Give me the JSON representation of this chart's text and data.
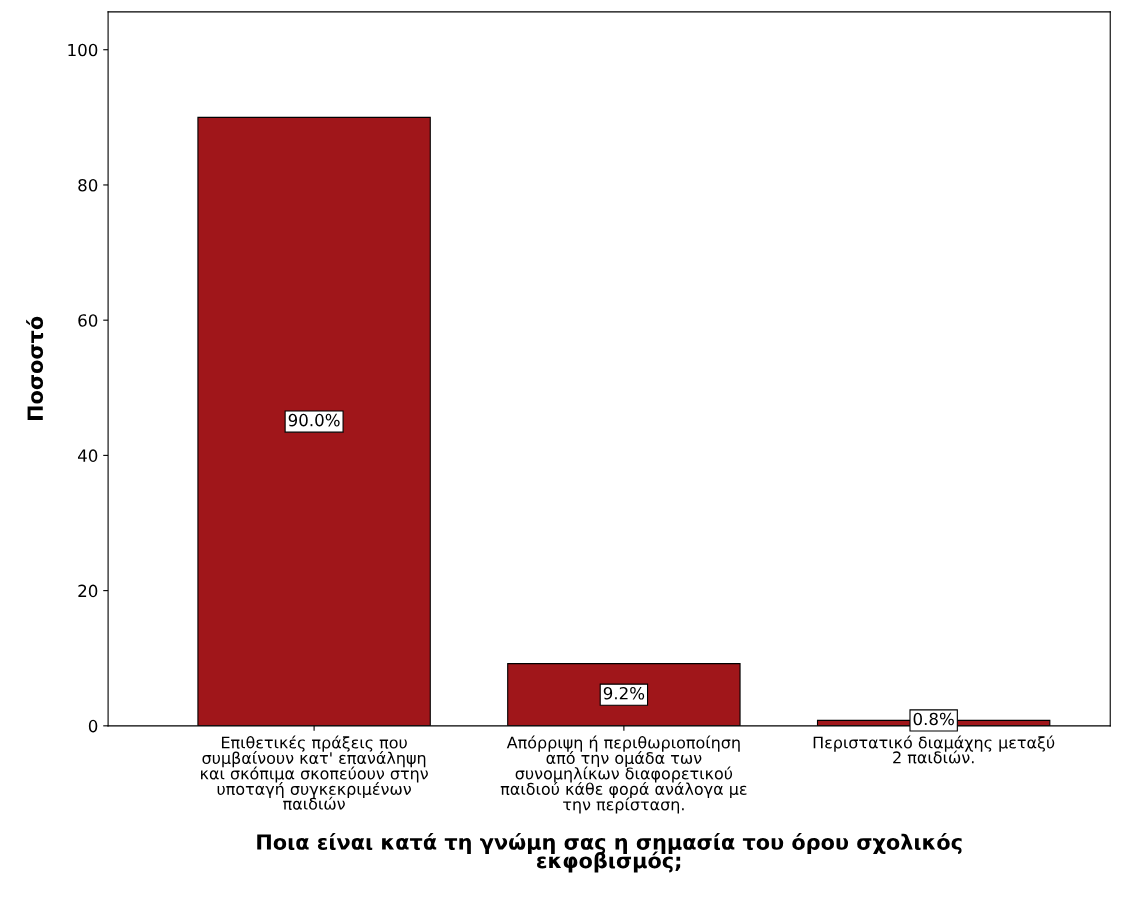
{
  "chart_data": {
    "type": "bar",
    "xlabel": "Ποια είναι κατά τη γνώμη σας η σημασία του όρου σχολικός\nεκφοβισμός;",
    "ylabel": "Ποσοστό",
    "categories": [
      "Επιθετικές πράξεις που\nσυμβαίνουν κατ' επανάληψη\nκαι σκόπιμα σκοπεύουν στην\nυποταγή συγκεκριμένων\nπαιδιών",
      "Απόρριψη ή περιθωριοποίηση\nαπό την ομάδα των\nσυνομηλίκων διαφορετικού\nπαιδιού κάθε φορά ανάλογα με\nτην περίσταση.",
      "Περιστατικό διαμάχης μεταξύ\n2 παιδιών."
    ],
    "values": [
      90.0,
      9.2,
      0.8
    ],
    "value_labels": [
      "90.0%",
      "9.2%",
      "0.8%"
    ],
    "color": "#a0161a",
    "ylim": [
      0,
      105.6
    ],
    "yticks": [
      0,
      20,
      40,
      60,
      80,
      100
    ],
    "grid": false,
    "legend": false
  }
}
